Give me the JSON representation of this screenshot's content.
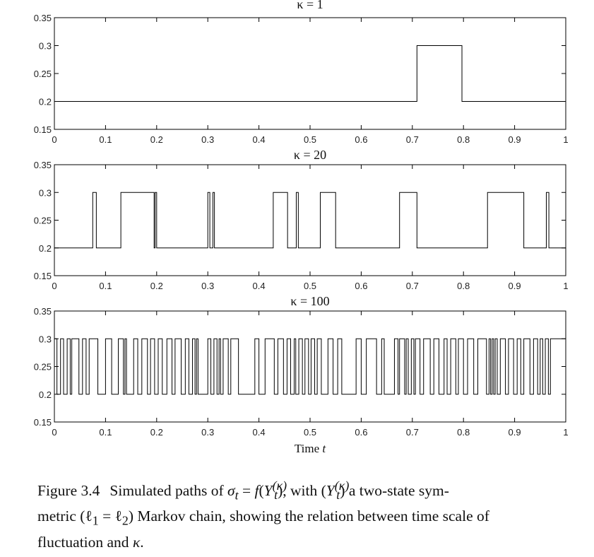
{
  "chart_data": [
    {
      "type": "line",
      "title": "κ = 1",
      "xlabel": "",
      "ylabel": "",
      "xlim": [
        0,
        1
      ],
      "ylim": [
        0.15,
        0.35
      ],
      "xticks": [
        "0",
        "0.1",
        "0.2",
        "0.3",
        "0.4",
        "0.5",
        "0.6",
        "0.7",
        "0.8",
        "0.9",
        "1"
      ],
      "yticks": [
        "0.15",
        "0.2",
        "0.25",
        "0.3",
        "0.35"
      ],
      "grid": false,
      "series": [
        {
          "x": [
            0,
            0.709,
            0.709,
            0.797,
            0.797,
            1
          ],
          "y": [
            0.2,
            0.2,
            0.3,
            0.3,
            0.2,
            0.2
          ]
        }
      ]
    },
    {
      "type": "line",
      "title": "κ = 20",
      "xlabel": "",
      "ylabel": "",
      "xlim": [
        0,
        1
      ],
      "ylim": [
        0.15,
        0.35
      ],
      "xticks": [
        "0",
        "0.1",
        "0.2",
        "0.3",
        "0.4",
        "0.5",
        "0.6",
        "0.7",
        "0.8",
        "0.9",
        "1"
      ],
      "yticks": [
        "0.15",
        "0.2",
        "0.25",
        "0.3",
        "0.35"
      ],
      "grid": false,
      "series": [
        {
          "x": [
            0,
            0.075,
            0.075,
            0.082,
            0.082,
            0.13,
            0.13,
            0.195,
            0.195,
            0.197,
            0.197,
            0.2,
            0.2,
            0.232,
            0.232,
            0.3,
            0.3,
            0.304,
            0.304,
            0.31,
            0.31,
            0.313,
            0.313,
            0.428,
            0.428,
            0.456,
            0.456,
            0.473,
            0.473,
            0.477,
            0.477,
            0.52,
            0.52,
            0.55,
            0.55,
            0.675,
            0.675,
            0.709,
            0.709,
            0.847,
            0.847,
            0.918,
            0.918,
            0.962,
            0.962,
            0.967,
            0.967,
            1
          ],
          "y": [
            0.2,
            0.2,
            0.3,
            0.3,
            0.2,
            0.2,
            0.3,
            0.3,
            0.2,
            0.2,
            0.3,
            0.3,
            0.2,
            0.2,
            0.2,
            0.2,
            0.3,
            0.3,
            0.2,
            0.2,
            0.3,
            0.3,
            0.2,
            0.2,
            0.3,
            0.3,
            0.2,
            0.2,
            0.3,
            0.3,
            0.2,
            0.2,
            0.3,
            0.3,
            0.2,
            0.2,
            0.3,
            0.3,
            0.2,
            0.2,
            0.3,
            0.3,
            0.2,
            0.2,
            0.3,
            0.3,
            0.2,
            0.2
          ]
        }
      ]
    },
    {
      "type": "line",
      "title": "κ = 100",
      "xlabel": "Time t",
      "ylabel": "",
      "xlim": [
        0,
        1
      ],
      "ylim": [
        0.15,
        0.35
      ],
      "xticks": [
        "0",
        "0.1",
        "0.2",
        "0.3",
        "0.4",
        "0.5",
        "0.6",
        "0.7",
        "0.8",
        "0.9",
        "1"
      ],
      "yticks": [
        "0.15",
        "0.2",
        "0.25",
        "0.3",
        "0.35"
      ],
      "grid": false,
      "series": [
        {
          "switch_times": [
            0.005,
            0.012,
            0.018,
            0.025,
            0.031,
            0.034,
            0.048,
            0.055,
            0.062,
            0.068,
            0.085,
            0.1,
            0.112,
            0.125,
            0.135,
            0.138,
            0.141,
            0.155,
            0.163,
            0.171,
            0.182,
            0.188,
            0.196,
            0.203,
            0.211,
            0.22,
            0.23,
            0.236,
            0.248,
            0.256,
            0.263,
            0.27,
            0.275,
            0.278,
            0.281,
            0.3,
            0.306,
            0.312,
            0.318,
            0.322,
            0.325,
            0.33,
            0.34,
            0.345,
            0.36,
            0.392,
            0.4,
            0.412,
            0.43,
            0.437,
            0.448,
            0.455,
            0.462,
            0.469,
            0.472,
            0.478,
            0.485,
            0.49,
            0.497,
            0.502,
            0.509,
            0.514,
            0.522,
            0.535,
            0.545,
            0.554,
            0.562,
            0.59,
            0.6,
            0.61,
            0.63,
            0.64,
            0.645,
            0.665,
            0.672,
            0.675,
            0.685,
            0.688,
            0.692,
            0.698,
            0.703,
            0.706,
            0.715,
            0.722,
            0.735,
            0.742,
            0.752,
            0.762,
            0.768,
            0.775,
            0.785,
            0.79,
            0.8,
            0.808,
            0.82,
            0.828,
            0.845,
            0.85,
            0.853,
            0.856,
            0.859,
            0.862,
            0.866,
            0.872,
            0.882,
            0.888,
            0.898,
            0.905,
            0.912,
            0.918,
            0.93,
            0.937,
            0.945,
            0.95,
            0.955,
            0.96,
            0.966,
            0.97
          ],
          "start_value": 0.3,
          "end_x": 1
        }
      ]
    }
  ],
  "caption": {
    "label": "Figure 3.4",
    "text_1": "Simulated paths of ",
    "sigma": "σ",
    "sub_t": "t",
    "text_2": " = ",
    "f": "f",
    "text_3": "(",
    "Y": "Y",
    "sup_kappa": "(κ)",
    "text_4": "), with (",
    "text_5": ") a two-state sym-",
    "line2": "metric (ℓ",
    "sub_1": "1",
    "eq": " = ℓ",
    "sub_2": "2",
    "line2_rest": ") Markov chain, showing the relation between time scale of",
    "line3": "fluctuation and ",
    "kappa": "κ",
    "period": "."
  },
  "style": {
    "line_color": "#000000",
    "axis_color": "#000000",
    "text_color": "#222222"
  }
}
